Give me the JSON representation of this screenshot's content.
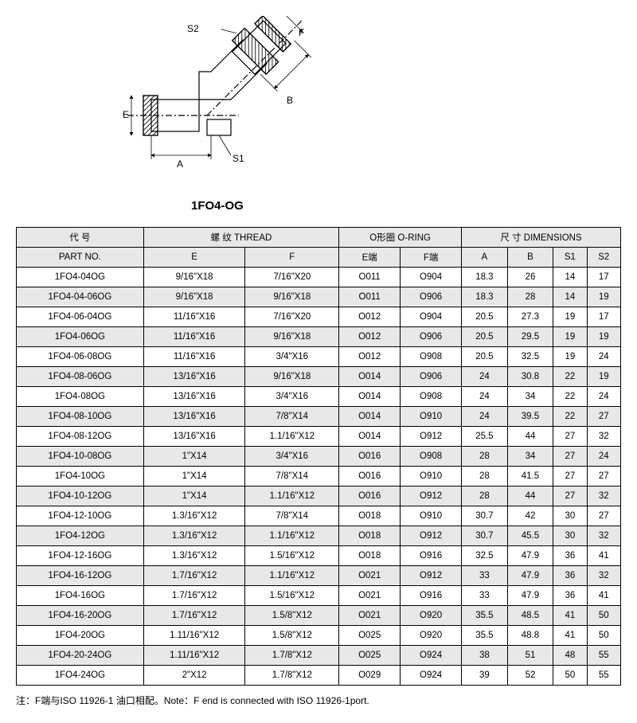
{
  "title": "1FO4-OG",
  "diagram": {
    "labels": {
      "A": "A",
      "B": "B",
      "E": "E",
      "F": "F",
      "S1": "S1",
      "S2": "S2"
    }
  },
  "table": {
    "header_group": {
      "partno_cn": "代 号",
      "partno_en": "PART NO.",
      "thread": "螺 纹  THREAD",
      "oring": "O形圈 O-RING",
      "dims": "尺 寸  DIMENSIONS"
    },
    "header_sub": {
      "E": "E",
      "F": "F",
      "Ee": "E端",
      "Fe": "F端",
      "A": "A",
      "B": "B",
      "S1": "S1",
      "S2": "S2"
    },
    "rows": [
      [
        "1FO4-04OG",
        "9/16\"X18",
        "7/16\"X20",
        "O011",
        "O904",
        "18.3",
        "26",
        "14",
        "17"
      ],
      [
        "1FO4-04-06OG",
        "9/16\"X18",
        "9/16\"X18",
        "O011",
        "O906",
        "18.3",
        "28",
        "14",
        "19"
      ],
      [
        "1FO4-06-04OG",
        "11/16\"X16",
        "7/16\"X20",
        "O012",
        "O904",
        "20.5",
        "27.3",
        "19",
        "17"
      ],
      [
        "1FO4-06OG",
        "11/16\"X16",
        "9/16\"X18",
        "O012",
        "O906",
        "20.5",
        "29.5",
        "19",
        "19"
      ],
      [
        "1FO4-06-08OG",
        "11/16\"X16",
        "3/4\"X16",
        "O012",
        "O908",
        "20.5",
        "32.5",
        "19",
        "24"
      ],
      [
        "1FO4-08-06OG",
        "13/16\"X16",
        "9/16\"X18",
        "O014",
        "O906",
        "24",
        "30.8",
        "22",
        "19"
      ],
      [
        "1FO4-08OG",
        "13/16\"X16",
        "3/4\"X16",
        "O014",
        "O908",
        "24",
        "34",
        "22",
        "24"
      ],
      [
        "1FO4-08-10OG",
        "13/16\"X16",
        "7/8\"X14",
        "O014",
        "O910",
        "24",
        "39.5",
        "22",
        "27"
      ],
      [
        "1FO4-08-12OG",
        "13/16\"X16",
        "1.1/16\"X12",
        "O014",
        "O912",
        "25.5",
        "44",
        "27",
        "32"
      ],
      [
        "1FO4-10-08OG",
        "1\"X14",
        "3/4\"X16",
        "O016",
        "O908",
        "28",
        "34",
        "27",
        "24"
      ],
      [
        "1FO4-10OG",
        "1\"X14",
        "7/8\"X14",
        "O016",
        "O910",
        "28",
        "41.5",
        "27",
        "27"
      ],
      [
        "1FO4-10-12OG",
        "1\"X14",
        "1.1/16\"X12",
        "O016",
        "O912",
        "28",
        "44",
        "27",
        "32"
      ],
      [
        "1FO4-12-10OG",
        "1.3/16\"X12",
        "7/8\"X14",
        "O018",
        "O910",
        "30.7",
        "42",
        "30",
        "27"
      ],
      [
        "1FO4-12OG",
        "1.3/16\"X12",
        "1.1/16\"X12",
        "O018",
        "O912",
        "30.7",
        "45.5",
        "30",
        "32"
      ],
      [
        "1FO4-12-16OG",
        "1.3/16\"X12",
        "1.5/16\"X12",
        "O018",
        "O916",
        "32.5",
        "47.9",
        "36",
        "41"
      ],
      [
        "1FO4-16-12OG",
        "1.7/16\"X12",
        "1.1/16\"X12",
        "O021",
        "O912",
        "33",
        "47.9",
        "36",
        "32"
      ],
      [
        "1FO4-16OG",
        "1.7/16\"X12",
        "1.5/16\"X12",
        "O021",
        "O916",
        "33",
        "47.9",
        "36",
        "41"
      ],
      [
        "1FO4-16-20OG",
        "1.7/16\"X12",
        "1.5/8\"X12",
        "O021",
        "O920",
        "35.5",
        "48.5",
        "41",
        "50"
      ],
      [
        "1FO4-20OG",
        "1.11/16\"X12",
        "1.5/8\"X12",
        "O025",
        "O920",
        "35.5",
        "48.8",
        "41",
        "50"
      ],
      [
        "1FO4-20-24OG",
        "1.11/16\"X12",
        "1.7/8\"X12",
        "O025",
        "O924",
        "38",
        "51",
        "48",
        "55"
      ],
      [
        "1FO4-24OG",
        "2\"X12",
        "1.7/8\"X12",
        "O029",
        "O924",
        "39",
        "52",
        "50",
        "55"
      ]
    ]
  },
  "note": "注：F端与ISO 11926-1 油口相配。Note：F end is connected with ISO 11926-1port."
}
